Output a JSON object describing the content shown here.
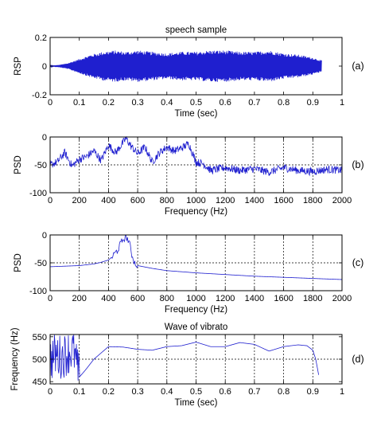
{
  "figure": {
    "colors": {
      "trace": "#1f1fcf",
      "axes": "#000000",
      "background": "#ffffff"
    }
  },
  "chart_data": [
    {
      "type": "line",
      "title": "speech sample",
      "xlabel": "Time (sec)",
      "ylabel": "RSP",
      "panel_tag": "(a)",
      "xlim": [
        0,
        1
      ],
      "ylim": [
        -0.2,
        0.2
      ],
      "xticks": [
        0,
        0.1,
        0.2,
        0.3,
        0.4,
        0.5,
        0.6,
        0.7,
        0.8,
        0.9,
        1
      ],
      "yticks": [
        -0.2,
        0,
        0.2
      ],
      "grid": false,
      "series": [
        {
          "x": [
            0,
            0.03,
            0.06,
            0.1,
            0.14,
            0.18,
            0.22,
            0.26,
            0.3,
            0.35,
            0.4,
            0.45,
            0.5,
            0.55,
            0.6,
            0.65,
            0.7,
            0.75,
            0.8,
            0.85,
            0.9,
            0.93
          ],
          "envelope": [
            0.003,
            0.008,
            0.02,
            0.05,
            0.08,
            0.1,
            0.11,
            0.1,
            0.11,
            0.1,
            0.09,
            0.1,
            0.1,
            0.11,
            0.11,
            0.1,
            0.1,
            0.11,
            0.09,
            0.08,
            0.06,
            0.04
          ]
        }
      ]
    },
    {
      "type": "line",
      "title": "",
      "xlabel": "Frequency (Hz)",
      "ylabel": "PSD",
      "panel_tag": "(b)",
      "xlim": [
        0,
        2000
      ],
      "ylim": [
        -100,
        0
      ],
      "xticks": [
        0,
        200,
        400,
        600,
        800,
        1000,
        1200,
        1400,
        1600,
        1800,
        2000
      ],
      "yticks": [
        -100,
        -50,
        0
      ],
      "grid": true,
      "series": [
        {
          "x": [
            0,
            50,
            100,
            150,
            200,
            250,
            300,
            350,
            400,
            450,
            500,
            520,
            550,
            600,
            650,
            700,
            750,
            800,
            850,
            900,
            950,
            1000,
            1050,
            1100,
            1200,
            1300,
            1400,
            1500,
            1600,
            1700,
            1800,
            1900,
            2000
          ],
          "y": [
            -50,
            -45,
            -28,
            -52,
            -40,
            -35,
            -25,
            -42,
            -15,
            -28,
            -10,
            -2,
            -15,
            -30,
            -18,
            -45,
            -28,
            -18,
            -25,
            -20,
            -12,
            -45,
            -48,
            -60,
            -55,
            -60,
            -57,
            -63,
            -55,
            -60,
            -62,
            -58,
            -60
          ]
        }
      ]
    },
    {
      "type": "line",
      "title": "",
      "xlabel": "Frequency (Hz)",
      "ylabel": "PSD",
      "panel_tag": "(c)",
      "xlim": [
        0,
        2000
      ],
      "ylim": [
        -100,
        0
      ],
      "xticks": [
        0,
        200,
        400,
        600,
        800,
        1000,
        1200,
        1400,
        1600,
        1800,
        2000
      ],
      "yticks": [
        -100,
        -50,
        0
      ],
      "grid": true,
      "series": [
        {
          "x": [
            0,
            100,
            200,
            300,
            350,
            400,
            430,
            460,
            480,
            500,
            520,
            540,
            560,
            580,
            600,
            700,
            800,
            1000,
            1200,
            1400,
            1600,
            1800,
            2000
          ],
          "y": [
            -57,
            -56,
            -55,
            -52,
            -49,
            -45,
            -38,
            -28,
            -18,
            -8,
            -2,
            -12,
            -35,
            -50,
            -55,
            -60,
            -64,
            -68,
            -71,
            -74,
            -76,
            -78,
            -80
          ]
        }
      ]
    },
    {
      "type": "line",
      "title": "Wave of vibrato",
      "xlabel": "Time (sec)",
      "ylabel": "Frequency (Hz)",
      "panel_tag": "(d)",
      "xlim": [
        0,
        1
      ],
      "ylim": [
        445,
        555
      ],
      "xticks": [
        0,
        0.1,
        0.2,
        0.3,
        0.4,
        0.5,
        0.6,
        0.7,
        0.8,
        0.9,
        1
      ],
      "yticks": [
        450,
        500,
        550
      ],
      "grid": true,
      "series": [
        {
          "x": [
            0,
            0.02,
            0.04,
            0.06,
            0.08,
            0.1,
            0.12,
            0.15,
            0.2,
            0.25,
            0.3,
            0.35,
            0.4,
            0.45,
            0.5,
            0.55,
            0.6,
            0.65,
            0.7,
            0.75,
            0.8,
            0.85,
            0.88,
            0.9,
            0.91,
            0.92
          ],
          "y": [
            500,
            510,
            505,
            515,
            520,
            460,
            475,
            500,
            528,
            527,
            522,
            520,
            528,
            530,
            538,
            528,
            528,
            537,
            533,
            518,
            528,
            532,
            530,
            520,
            500,
            465
          ]
        }
      ]
    }
  ]
}
